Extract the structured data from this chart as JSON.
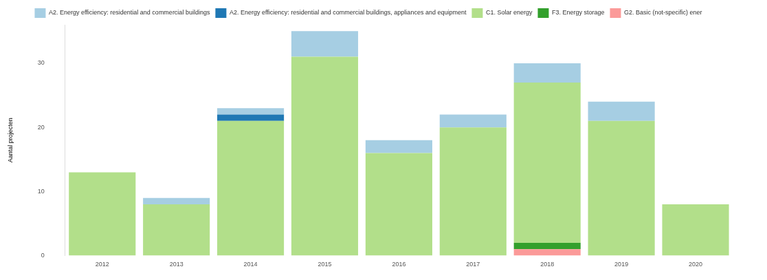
{
  "chart_data": {
    "type": "bar",
    "stacked": true,
    "ylabel": "Aantal projecten",
    "categories": [
      "2012",
      "2013",
      "2014",
      "2015",
      "2016",
      "2017",
      "2018",
      "2019",
      "2020"
    ],
    "ylim": [
      0,
      36
    ],
    "yticks": [
      0,
      10,
      20,
      30
    ],
    "grid": false,
    "legend": "top",
    "series": [
      {
        "name": "G2. Basic (not-specific) ener",
        "color": "#fb9a99",
        "values": [
          0,
          0,
          0,
          0,
          0,
          0,
          1,
          0,
          0
        ]
      },
      {
        "name": "F3. Energy storage",
        "color": "#33a02c",
        "values": [
          0,
          0,
          0,
          0,
          0,
          0,
          1,
          0,
          0
        ]
      },
      {
        "name": "C1. Solar energy",
        "color": "#b2df8a",
        "values": [
          13,
          8,
          21,
          31,
          16,
          20,
          25,
          21,
          8
        ]
      },
      {
        "name": "A2. Energy efficiency: residential and commercial buildings, appliances and equipment",
        "color": "#1f78b4",
        "values": [
          0,
          0,
          1,
          0,
          0,
          0,
          0,
          0,
          0
        ]
      },
      {
        "name": "A2. Energy efficiency: residential and commercial buildings",
        "color": "#a6cee3",
        "values": [
          0,
          1,
          1,
          4,
          2,
          2,
          3,
          3,
          0
        ]
      }
    ]
  }
}
